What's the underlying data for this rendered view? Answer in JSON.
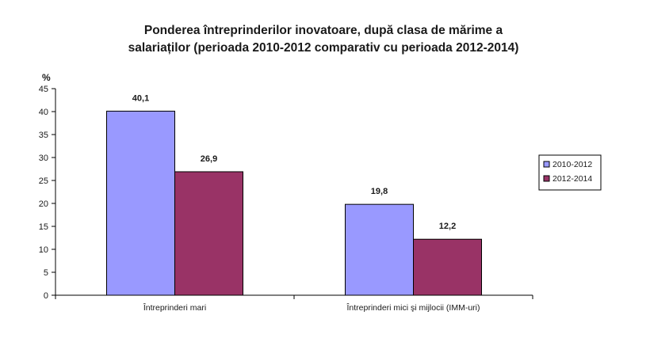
{
  "chart_data": {
    "type": "bar",
    "title_line1": "Ponderea întreprinderilor inovatoare, după clasa de mărime a",
    "title_line2": "salariaților (perioada 2010-2012 comparativ cu perioada 2012-2014)",
    "ylabel": "%",
    "xlabel": "",
    "ylim": [
      0,
      45
    ],
    "ytick_step": 5,
    "grid": false,
    "legend_position": "right",
    "categories": [
      "Întreprinderi mari",
      "Întreprinderi mici şi mijlocii (IMM-uri)"
    ],
    "series": [
      {
        "name": "2010-2012",
        "values": [
          40.1,
          19.8
        ],
        "value_labels": [
          "40,1",
          "19,8"
        ],
        "color": "#9999ff"
      },
      {
        "name": "2012-2014",
        "values": [
          26.9,
          12.2
        ],
        "value_labels": [
          "26,9",
          "12,2"
        ],
        "color": "#993366"
      }
    ]
  }
}
